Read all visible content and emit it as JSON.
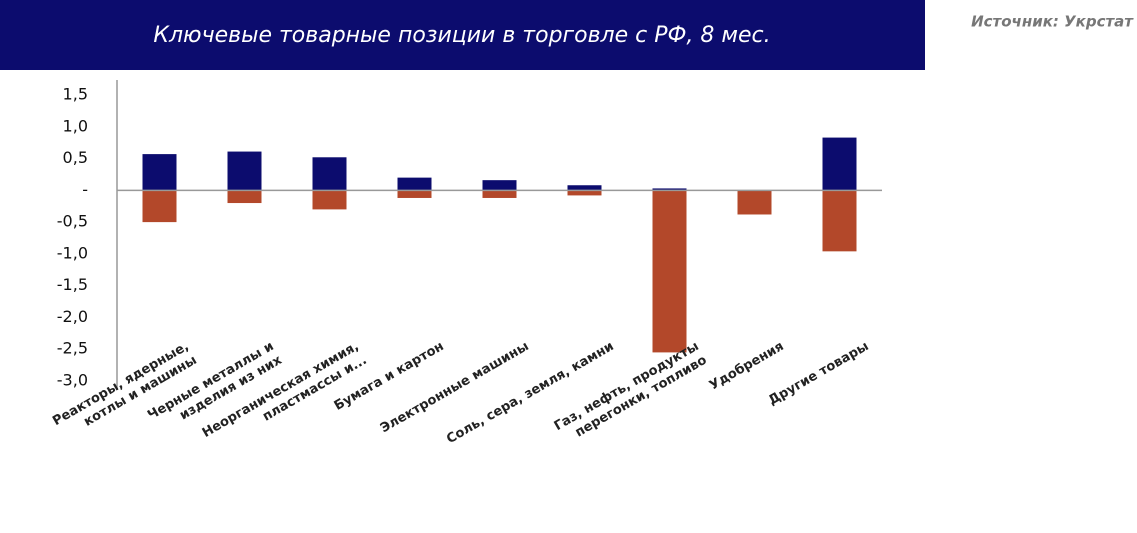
{
  "chart_data": {
    "type": "bar",
    "title": "Ключевые товарные позиции в торговле с РФ, 8 мес.",
    "source": "Источник: Укрстат",
    "categories": [
      "Реакторы, ядерные,\nкотлы и машины",
      "Черные металлы и\nизделия из них",
      "Неорганическая химия,\nпластмассы и...",
      "Бумага и картон",
      "Электронные машины",
      "Соль, сера, земля, камни",
      "Газ, нефть, продукты\nперегонки, топливо",
      "Удобрения",
      "Другие товары"
    ],
    "series": [
      {
        "color": "#0c0c6e",
        "values": [
          0.57,
          0.61,
          0.52,
          0.2,
          0.16,
          0.08,
          0.03,
          0,
          0.83
        ]
      },
      {
        "color": "#b3482a",
        "values": [
          -0.5,
          -0.2,
          -0.3,
          -0.12,
          -0.12,
          -0.08,
          -2.55,
          -0.38,
          -0.96
        ]
      }
    ],
    "ylim": [
      -3,
      1.5
    ],
    "yticks": [
      {
        "value": 1.5,
        "label": "1,5"
      },
      {
        "value": 1,
        "label": "1,0"
      },
      {
        "value": 0.5,
        "label": "0,5"
      },
      {
        "value": 0,
        "label": "-"
      },
      {
        "value": -0.5,
        "label": "-0,5"
      },
      {
        "value": -1,
        "label": "-1,0"
      },
      {
        "value": -1.5,
        "label": "-1,5"
      },
      {
        "value": -2,
        "label": "-2,0"
      },
      {
        "value": -2.5,
        "label": "-2,5"
      },
      {
        "value": -3,
        "label": "-3,0"
      }
    ],
    "grid": false
  }
}
